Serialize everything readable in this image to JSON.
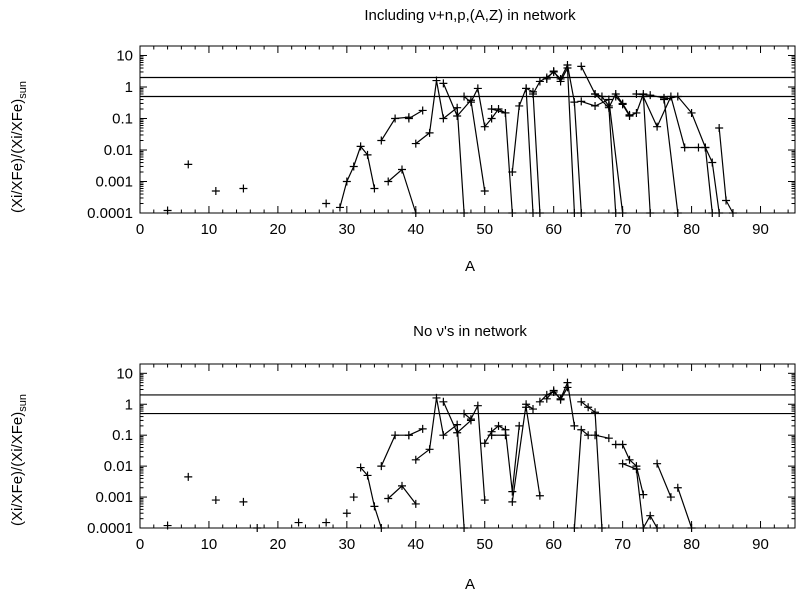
{
  "chart_data": [
    {
      "type": "scatter",
      "title": "Including ν+n,p,(A,Z) in network",
      "xlabel": "A",
      "ylabel": "(Xi/XFe)/(Xi/XFe)sun",
      "ylabel_main": "(Xi/XFe)/(Xi/XFe)",
      "ylabel_sub": "sun",
      "x_scale": "linear",
      "y_scale": "log",
      "xlim": [
        0,
        95
      ],
      "ylim": [
        0.0001,
        20
      ],
      "x_ticks": [
        0,
        10,
        20,
        30,
        40,
        50,
        60,
        70,
        80,
        90
      ],
      "x_tick_labels": [
        "0",
        "10",
        "20",
        "30",
        "40",
        "50",
        "60",
        "70",
        "80",
        "90"
      ],
      "y_ticks": [
        0.0001,
        0.001,
        0.01,
        0.1,
        1,
        10
      ],
      "y_tick_labels": [
        "0.0001",
        "0.001",
        "0.01",
        "0.1",
        "1",
        "10"
      ],
      "reference_lines": [
        2,
        0.5
      ],
      "marker": "+",
      "series": [
        {
          "x": [
            4
          ],
          "y": [
            0.00012
          ]
        },
        {
          "x": [
            7
          ],
          "y": [
            0.0035
          ]
        },
        {
          "x": [
            11
          ],
          "y": [
            0.0005
          ]
        },
        {
          "x": [
            15
          ],
          "y": [
            0.0006
          ]
        },
        {
          "x": [
            27
          ],
          "y": [
            0.0002
          ]
        },
        {
          "x": [
            29,
            30,
            31,
            32,
            33,
            34
          ],
          "y": [
            0.00015,
            0.001,
            0.003,
            0.013,
            0.007,
            0.0006
          ]
        },
        {
          "x": [
            36,
            38,
            40
          ],
          "y": [
            0.001,
            0.0024,
            0.0001
          ]
        },
        {
          "x": [
            35,
            37,
            39
          ],
          "y": [
            0.02,
            0.1,
            0.11
          ]
        },
        {
          "x": [
            40,
            42,
            43,
            44,
            46,
            47
          ],
          "y": [
            0.016,
            0.035,
            1.6,
            0.1,
            0.22,
            0.0001
          ]
        },
        {
          "x": [
            39,
            41
          ],
          "y": [
            0.1,
            0.18
          ]
        },
        {
          "x": [
            44,
            46,
            48,
            50
          ],
          "y": [
            1.3,
            0.12,
            0.38,
            0.0005
          ]
        },
        {
          "x": [
            47,
            48,
            49,
            50,
            51,
            52,
            53,
            54
          ],
          "y": [
            0.5,
            0.33,
            0.9,
            0.055,
            0.1,
            0.2,
            0.15,
            0.0001
          ]
        },
        {
          "x": [
            51,
            53
          ],
          "y": [
            0.2,
            0.15
          ]
        },
        {
          "x": [
            54,
            55,
            56,
            57
          ],
          "y": [
            0.002,
            0.25,
            0.9,
            0.0001
          ]
        },
        {
          "x": [
            56,
            57,
            58
          ],
          "y": [
            0.9,
            0.7,
            0.0001
          ]
        },
        {
          "x": [
            57,
            58,
            59,
            60,
            61,
            62,
            63,
            64
          ],
          "y": [
            0.6,
            1.5,
            2,
            3,
            1.8,
            5,
            0.33,
            0.0001
          ]
        },
        {
          "x": [
            59,
            60,
            61,
            62,
            63
          ],
          "y": [
            1.8,
            3.2,
            1.5,
            4,
            0.0001
          ]
        },
        {
          "x": [
            64,
            66,
            67,
            68,
            69
          ],
          "y": [
            4.5,
            0.6,
            0.5,
            0.25,
            0.0001
          ]
        },
        {
          "x": [
            64,
            66,
            68,
            70
          ],
          "y": [
            0.35,
            0.25,
            0.4,
            0.0001
          ]
        },
        {
          "x": [
            66,
            68,
            69,
            70,
            71
          ],
          "y": [
            0.6,
            0.22,
            0.6,
            0.3,
            0.13
          ]
        },
        {
          "x": [
            69,
            70,
            71,
            72,
            73,
            74
          ],
          "y": [
            0.5,
            0.28,
            0.12,
            0.15,
            0.6,
            0.0001
          ]
        },
        {
          "x": [
            72,
            74,
            76,
            78
          ],
          "y": [
            0.6,
            0.55,
            0.45,
            0.0001
          ]
        },
        {
          "x": [
            73,
            75,
            77,
            79,
            81
          ],
          "y": [
            0.5,
            0.055,
            0.5,
            0.012,
            0.012
          ]
        },
        {
          "x": [
            76,
            78,
            80,
            82,
            83,
            84
          ],
          "y": [
            0.4,
            0.5,
            0.15,
            0.012,
            0.004,
            0.0001
          ]
        },
        {
          "x": [
            82,
            83
          ],
          "y": [
            0.012,
            0.0001
          ]
        },
        {
          "x": [
            84,
            85,
            86
          ],
          "y": [
            0.05,
            0.00025,
            0.0001
          ]
        }
      ]
    },
    {
      "type": "scatter",
      "title": "No ν's in network",
      "xlabel": "A",
      "ylabel": "(Xi/XFe)/(Xi/XFe)sun",
      "ylabel_main": "(Xi/XFe)/(Xi/XFe)",
      "ylabel_sub": "sun",
      "x_scale": "linear",
      "y_scale": "log",
      "xlim": [
        0,
        95
      ],
      "ylim": [
        0.0001,
        20
      ],
      "x_ticks": [
        0,
        10,
        20,
        30,
        40,
        50,
        60,
        70,
        80,
        90
      ],
      "x_tick_labels": [
        "0",
        "10",
        "20",
        "30",
        "40",
        "50",
        "60",
        "70",
        "80",
        "90"
      ],
      "y_ticks": [
        0.0001,
        0.001,
        0.01,
        0.1,
        1,
        10
      ],
      "y_tick_labels": [
        "0.0001",
        "0.001",
        "0.01",
        "0.1",
        "1",
        "10"
      ],
      "reference_lines": [
        2,
        0.5
      ],
      "marker": "+",
      "series": [
        {
          "x": [
            4
          ],
          "y": [
            0.00012
          ]
        },
        {
          "x": [
            7
          ],
          "y": [
            0.0045
          ]
        },
        {
          "x": [
            11
          ],
          "y": [
            0.0008
          ]
        },
        {
          "x": [
            15
          ],
          "y": [
            0.0007
          ]
        },
        {
          "x": [
            17
          ],
          "y": [
            0.0001
          ]
        },
        {
          "x": [
            23
          ],
          "y": [
            0.00015
          ]
        },
        {
          "x": [
            27
          ],
          "y": [
            0.00015
          ]
        },
        {
          "x": [
            30
          ],
          "y": [
            0.0003
          ]
        },
        {
          "x": [
            31
          ],
          "y": [
            0.001
          ]
        },
        {
          "x": [
            32,
            33,
            34,
            35
          ],
          "y": [
            0.009,
            0.005,
            0.0005,
            0.0001
          ]
        },
        {
          "x": [
            36,
            38,
            40
          ],
          "y": [
            0.0009,
            0.0023,
            0.0006
          ]
        },
        {
          "x": [
            35,
            37,
            39
          ],
          "y": [
            0.01,
            0.1,
            0.1
          ]
        },
        {
          "x": [
            40,
            42,
            43,
            44,
            46,
            47
          ],
          "y": [
            0.016,
            0.035,
            1.6,
            0.1,
            0.22,
            0.0001
          ]
        },
        {
          "x": [
            39,
            41
          ],
          "y": [
            0.1,
            0.16
          ]
        },
        {
          "x": [
            44,
            46,
            48
          ],
          "y": [
            1.2,
            0.12,
            0.3
          ]
        },
        {
          "x": [
            47,
            48,
            49,
            50
          ],
          "y": [
            0.5,
            0.33,
            0.9,
            0.0008
          ]
        },
        {
          "x": [
            50,
            51,
            52,
            53,
            54,
            55
          ],
          "y": [
            0.055,
            0.13,
            0.2,
            0.15,
            0.0015,
            0.2
          ]
        },
        {
          "x": [
            51,
            53
          ],
          "y": [
            0.1,
            0.1
          ]
        },
        {
          "x": [
            54,
            56,
            57
          ],
          "y": [
            0.0007,
            1,
            0.7
          ]
        },
        {
          "x": [
            56,
            58
          ],
          "y": [
            0.8,
            0.0011
          ]
        },
        {
          "x": [
            58,
            59,
            60,
            61,
            62,
            63
          ],
          "y": [
            1.2,
            2,
            2.5,
            1.5,
            5,
            0.2
          ]
        },
        {
          "x": [
            59,
            60,
            61,
            62
          ],
          "y": [
            1.5,
            2.8,
            1.4,
            3.5
          ]
        },
        {
          "x": [
            63,
            64,
            65
          ],
          "y": [
            0.0001,
            0.15,
            0.1
          ]
        },
        {
          "x": [
            64,
            65,
            66,
            67
          ],
          "y": [
            1.2,
            0.8,
            0.55,
            0.0001
          ]
        },
        {
          "x": [
            66,
            68
          ],
          "y": [
            0.1,
            0.08
          ]
        },
        {
          "x": [
            69,
            70,
            71,
            72,
            73
          ],
          "y": [
            0.05,
            0.05,
            0.016,
            0.01,
            0.0012
          ]
        },
        {
          "x": [
            70,
            72,
            73,
            74,
            75
          ],
          "y": [
            0.012,
            0.008,
            0.0001,
            0.00025,
            0.0001
          ]
        },
        {
          "x": [
            75,
            77
          ],
          "y": [
            0.012,
            0.001
          ]
        },
        {
          "x": [
            78,
            80
          ],
          "y": [
            0.002,
            0.0001
          ]
        }
      ]
    }
  ]
}
